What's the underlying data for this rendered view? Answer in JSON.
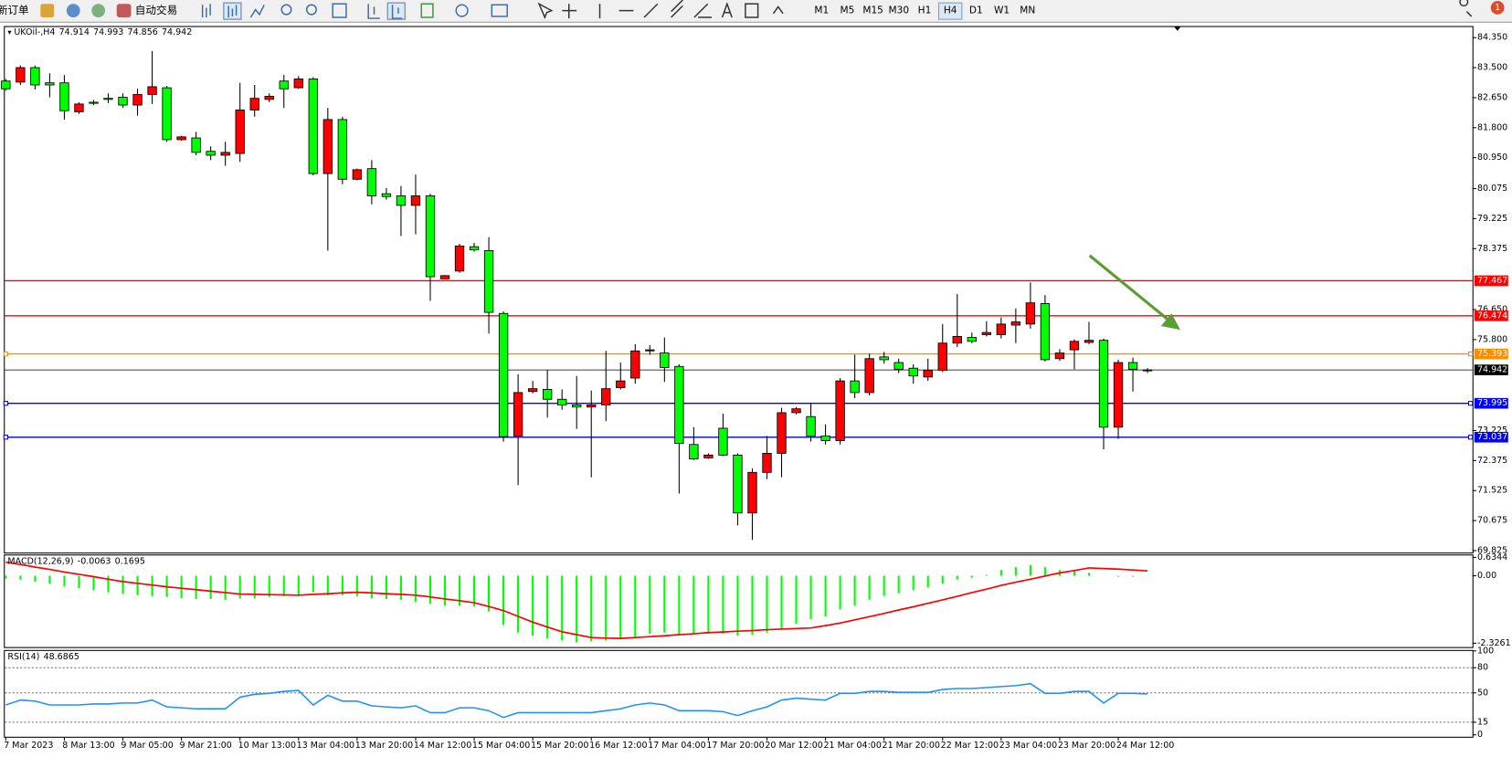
{
  "toolbar": {
    "new_order": "新订单",
    "auto_trading": "自动交易",
    "timeframes": [
      "M1",
      "M5",
      "M15",
      "M30",
      "H1",
      "H4",
      "D1",
      "W1",
      "MN"
    ],
    "active_timeframe": "H4",
    "notifications": 1
  },
  "chart_data": [
    {
      "type": "candlestick",
      "symbol": "UKOil-,H4",
      "categories": [
        "7 Mar 2023",
        null,
        null,
        null,
        "8 Mar 13:00",
        null,
        null,
        null,
        "9 Mar 05:00",
        null,
        null,
        null,
        "9 Mar 21:00",
        null,
        null,
        null,
        "10 Mar 13:00",
        null,
        null,
        null,
        "13 Mar 04:00",
        null,
        null,
        null,
        "13 Mar 20:00",
        null,
        null,
        null,
        "14 Mar 12:00",
        null,
        null,
        null,
        "15 Mar 04:00",
        null,
        null,
        null,
        "15 Mar 20:00",
        null,
        null,
        null,
        "16 Mar 12:00",
        null,
        null,
        null,
        "17 Mar 04:00",
        null,
        null,
        null,
        "17 Mar 20:00",
        null,
        null,
        null,
        "20 Mar 12:00",
        null,
        null,
        null,
        "21 Mar 04:00",
        null,
        null,
        null,
        "21 Mar 20:00",
        null,
        null,
        null,
        "22 Mar 12:00",
        null,
        null,
        null,
        "23 Mar 04:00",
        null,
        null,
        null,
        "23 Mar 20:00",
        null,
        null,
        null,
        "24 Mar 12:00",
        null,
        null
      ],
      "open": [
        83.12,
        83.09,
        83.5,
        83.07,
        83.07,
        82.25,
        82.52,
        82.63,
        82.66,
        82.44,
        82.74,
        82.93,
        81.46,
        81.51,
        81.13,
        81.02,
        81.07,
        82.3,
        82.6,
        83.12,
        82.93,
        83.18,
        80.5,
        82.03,
        80.34,
        80.64,
        79.93,
        79.87,
        79.6,
        79.87,
        77.52,
        77.74,
        78.43,
        78.32,
        76.54,
        73.07,
        74.33,
        74.39,
        74.11,
        73.95,
        73.89,
        73.95,
        74.44,
        74.71,
        75.48,
        75.42,
        75.04,
        72.83,
        72.45,
        73.29,
        72.53,
        70.89,
        72.04,
        72.58,
        73.73,
        73.62,
        73.07,
        72.94,
        74.63,
        74.3,
        75.31,
        75.15,
        74.99,
        74.74,
        74.93,
        75.7,
        75.86,
        75.94,
        75.94,
        76.21,
        76.24,
        76.82,
        75.26,
        75.51,
        75.72,
        75.78,
        73.32,
        75.15,
        74.914
      ],
      "high": [
        83.18,
        83.56,
        83.56,
        83.34,
        83.29,
        82.52,
        82.58,
        82.77,
        82.77,
        82.9,
        83.97,
        82.98,
        81.57,
        81.68,
        81.27,
        81.4,
        83.07,
        83.01,
        82.77,
        83.29,
        83.26,
        83.23,
        82.36,
        82.11,
        80.64,
        80.88,
        80.09,
        80.15,
        80.47,
        79.93,
        77.63,
        78.51,
        78.54,
        78.7,
        76.6,
        74.82,
        74.63,
        74.93,
        74.39,
        74.77,
        74.36,
        75.48,
        75.15,
        75.67,
        75.64,
        75.86,
        75.1,
        73.32,
        72.58,
        73.7,
        72.58,
        72.15,
        73.07,
        73.87,
        73.89,
        74.0,
        73.4,
        74.71,
        75.37,
        75.4,
        75.45,
        75.26,
        75.1,
        75.26,
        76.24,
        77.09,
        76.0,
        76.32,
        76.43,
        76.68,
        77.42,
        77.06,
        75.53,
        75.81,
        76.3,
        75.83,
        75.23,
        75.29,
        74.993
      ],
      "low": [
        82.85,
        83.01,
        82.88,
        82.66,
        82.03,
        82.19,
        82.44,
        82.49,
        82.36,
        82.14,
        82.47,
        81.4,
        81.43,
        81.02,
        80.88,
        80.72,
        80.83,
        82.11,
        82.52,
        82.36,
        82.9,
        80.45,
        78.32,
        80.2,
        80.31,
        79.63,
        79.76,
        78.73,
        78.78,
        76.9,
        77.5,
        77.69,
        78.29,
        75.97,
        72.91,
        71.68,
        74.28,
        73.59,
        73.81,
        73.27,
        71.9,
        73.49,
        74.39,
        74.55,
        75.37,
        74.6,
        71.44,
        72.39,
        72.42,
        72.5,
        70.54,
        70.13,
        71.85,
        71.9,
        73.68,
        72.91,
        72.83,
        72.83,
        74.14,
        74.22,
        75.12,
        74.85,
        74.55,
        74.63,
        74.88,
        75.59,
        75.7,
        75.89,
        75.83,
        75.7,
        76.11,
        75.18,
        75.2,
        74.96,
        75.67,
        72.69,
        72.99,
        74.33,
        74.856
      ],
      "close": [
        82.9,
        83.5,
        83.01,
        83.01,
        82.28,
        82.47,
        82.49,
        82.6,
        82.44,
        82.74,
        82.96,
        81.46,
        81.54,
        81.1,
        81.02,
        81.1,
        82.3,
        82.63,
        82.69,
        82.9,
        83.18,
        80.5,
        82.03,
        80.34,
        80.61,
        79.87,
        79.85,
        79.6,
        79.87,
        77.58,
        77.61,
        78.45,
        78.34,
        76.57,
        73.05,
        74.3,
        74.41,
        74.11,
        73.95,
        73.89,
        73.95,
        74.41,
        74.63,
        75.48,
        75.51,
        75.01,
        72.86,
        72.42,
        72.53,
        72.53,
        70.89,
        72.04,
        72.58,
        73.73,
        73.84,
        73.07,
        72.94,
        74.63,
        74.3,
        75.26,
        75.23,
        74.96,
        74.77,
        74.93,
        75.7,
        75.89,
        75.75,
        76.0,
        76.24,
        76.3,
        76.84,
        75.23,
        75.42,
        75.75,
        75.78,
        73.32,
        75.15,
        74.96,
        74.942
      ],
      "up_color": "#ff0000",
      "down_color": "#00ff00",
      "ylim": [
        69.77,
        84.65
      ],
      "yticks": [
        {
          "value": 84.35,
          "label": "84.350"
        },
        {
          "value": 83.5,
          "label": "83.500"
        },
        {
          "value": 82.65,
          "label": "82.650"
        },
        {
          "value": 81.8,
          "label": "81.800"
        },
        {
          "value": 80.95,
          "label": "80.950"
        },
        80.075,
        79.225,
        78.375,
        {
          "value": 76.65,
          "label": "76.650"
        },
        {
          "value": 75.8,
          "label": "75.800"
        },
        73.225,
        72.375,
        71.525,
        70.675,
        69.825
      ],
      "hlines": [
        {
          "value": 77.467,
          "color": "#ff0000"
        },
        {
          "value": 76.474,
          "color": "#ff0000"
        },
        {
          "value": 75.393,
          "color": "#ff8c00",
          "selected": true
        },
        {
          "value": 74.942,
          "color": "#000000"
        },
        {
          "value": 73.995,
          "color": "#0000ff",
          "selected": true
        },
        {
          "value": 73.037,
          "color": "#0000ff",
          "selected": true
        }
      ]
    },
    {
      "type": "macd",
      "title": "MACD(12,26,9)",
      "ylim": [
        -2.3261,
        0.6344
      ],
      "yticks": [
        0.6344,
        {
          "value": 0,
          "label": "0.00"
        },
        -2.3261
      ],
      "series": [
        {
          "kind": "histogram",
          "color": "#00ff00",
          "values": [
            -0.1,
            -0.13,
            -0.2,
            -0.27,
            -0.37,
            -0.43,
            -0.5,
            -0.57,
            -0.63,
            -0.67,
            -0.7,
            -0.73,
            -0.77,
            -0.8,
            -0.8,
            -0.83,
            -0.77,
            -0.77,
            -0.73,
            -0.7,
            -0.67,
            -0.57,
            -0.67,
            -0.67,
            -0.7,
            -0.77,
            -0.8,
            -0.83,
            -0.9,
            -0.96,
            -1.03,
            -1.03,
            -1.06,
            -1.23,
            -1.7,
            -1.96,
            -2.06,
            -2.16,
            -2.23,
            -2.3,
            -2.26,
            -2.23,
            -2.2,
            -2.1,
            -2.0,
            -1.96,
            -2.03,
            -2.0,
            -2.0,
            -2.0,
            -2.06,
            -2.03,
            -1.96,
            -1.83,
            -1.66,
            -1.5,
            -1.4,
            -1.16,
            -1.03,
            -0.83,
            -0.7,
            -0.6,
            -0.5,
            -0.4,
            -0.27,
            -0.13,
            -0.07,
            0.03,
            0.2,
            0.3,
            0.37,
            0.3,
            0.2,
            0.2,
            0.1,
            0.0,
            -0.03,
            -0.03,
            -0.0063
          ]
        },
        {
          "kind": "line",
          "color": "#ff0000",
          "values": [
            0.47,
            0.39,
            0.3,
            0.22,
            0.13,
            0.05,
            -0.03,
            -0.12,
            -0.2,
            -0.26,
            -0.32,
            -0.38,
            -0.43,
            -0.48,
            -0.53,
            -0.58,
            -0.63,
            -0.64,
            -0.65,
            -0.66,
            -0.67,
            -0.64,
            -0.62,
            -0.59,
            -0.57,
            -0.59,
            -0.62,
            -0.64,
            -0.67,
            -0.73,
            -0.8,
            -0.86,
            -0.93,
            -1.06,
            -1.2,
            -1.4,
            -1.6,
            -1.77,
            -1.93,
            -2.03,
            -2.13,
            -2.15,
            -2.16,
            -2.13,
            -2.1,
            -2.07,
            -2.03,
            -2.0,
            -1.96,
            -1.94,
            -1.91,
            -1.89,
            -1.86,
            -1.84,
            -1.82,
            -1.8,
            -1.72,
            -1.63,
            -1.52,
            -1.41,
            -1.3,
            -1.18,
            -1.07,
            -0.95,
            -0.83,
            -0.71,
            -0.58,
            -0.46,
            -0.33,
            -0.22,
            -0.12,
            -0.01,
            0.1,
            0.18,
            0.27,
            0.25,
            0.23,
            0.2,
            0.1695
          ]
        }
      ]
    },
    {
      "type": "rsi",
      "title": "RSI(14)",
      "ylim": [
        0,
        100
      ],
      "yticks": [
        0,
        15,
        50,
        80,
        100
      ],
      "color": "#1e90ff",
      "values": [
        35.6,
        41.4,
        40.2,
        35.6,
        35.6,
        35.6,
        36.8,
        36.8,
        37.9,
        37.9,
        41.4,
        33.3,
        32.2,
        31.0,
        31.0,
        31.0,
        44.8,
        48.3,
        49.4,
        51.7,
        52.9,
        35.6,
        47.1,
        40.2,
        40.2,
        34.5,
        33.3,
        32.2,
        34.5,
        26.4,
        26.4,
        32.2,
        32.2,
        28.7,
        20.7,
        26.4,
        26.4,
        26.4,
        26.4,
        26.4,
        26.4,
        28.7,
        31.0,
        35.6,
        37.9,
        35.6,
        28.7,
        28.7,
        28.7,
        27.6,
        23.0,
        28.7,
        33.3,
        41.4,
        43.7,
        42.5,
        41.4,
        49.4,
        49.4,
        51.7,
        51.7,
        50.6,
        50.6,
        50.6,
        54.0,
        55.2,
        55.2,
        56.3,
        57.5,
        58.6,
        60.9,
        49.4,
        49.4,
        51.7,
        51.7,
        37.9,
        49.4,
        49.4,
        48.6865
      ]
    }
  ]
}
